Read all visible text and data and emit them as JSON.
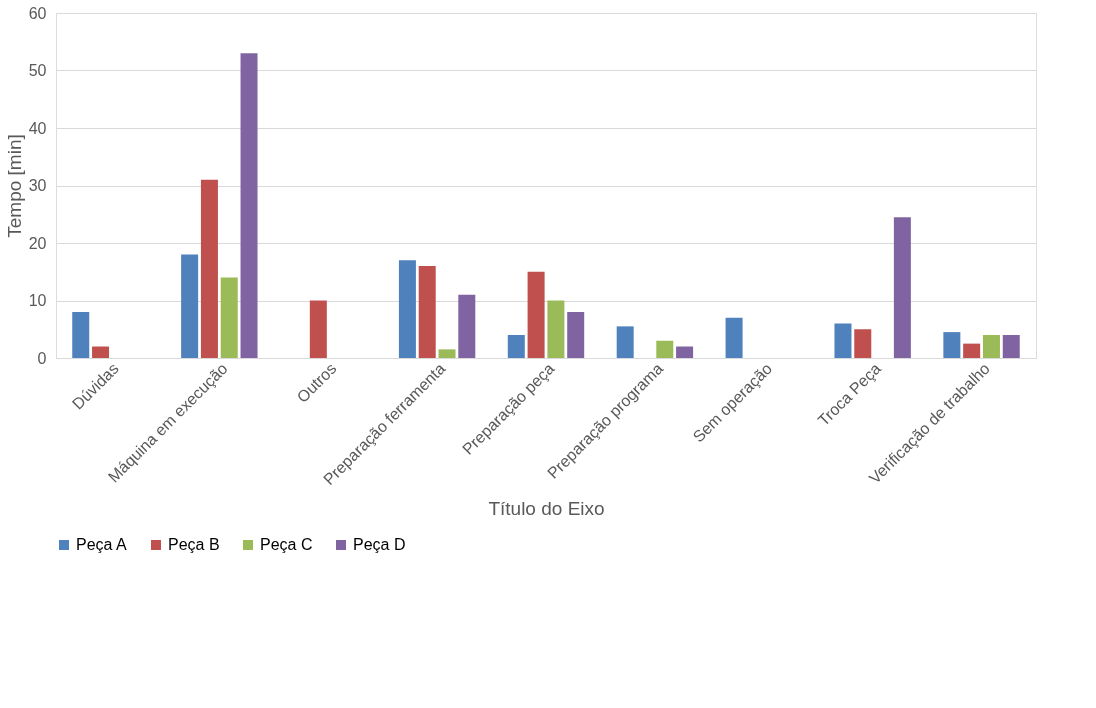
{
  "chart_data": {
    "type": "bar",
    "xlabel": "Título do Eixo",
    "ylabel": "Tempo [min]",
    "categories": [
      "Dúvidas",
      "Máquina em execução",
      "Outros",
      "Preparação ferramenta",
      "Preparação peça",
      "Preparação programa",
      "Sem operação",
      "Troca Peça",
      "Verificação de trabalho"
    ],
    "series": [
      {
        "name": "Peça A",
        "color": "#4f81bd",
        "values": [
          8,
          18,
          null,
          17,
          4,
          5.5,
          7,
          6,
          4.5
        ]
      },
      {
        "name": "Peça B",
        "color": "#c0504d",
        "values": [
          2,
          31,
          10,
          16,
          15,
          null,
          null,
          5,
          2.5
        ]
      },
      {
        "name": "Peça C",
        "color": "#9bbb59",
        "values": [
          null,
          14,
          null,
          1.5,
          10,
          3,
          null,
          null,
          4
        ]
      },
      {
        "name": "Peça D",
        "color": "#8064a2",
        "values": [
          null,
          53,
          null,
          11,
          8,
          2,
          null,
          24.5,
          4
        ]
      }
    ],
    "ylim": [
      0,
      60
    ],
    "yticks": [
      0,
      10,
      20,
      30,
      40,
      50,
      60
    ],
    "grid": "y",
    "legend": "bottom"
  }
}
